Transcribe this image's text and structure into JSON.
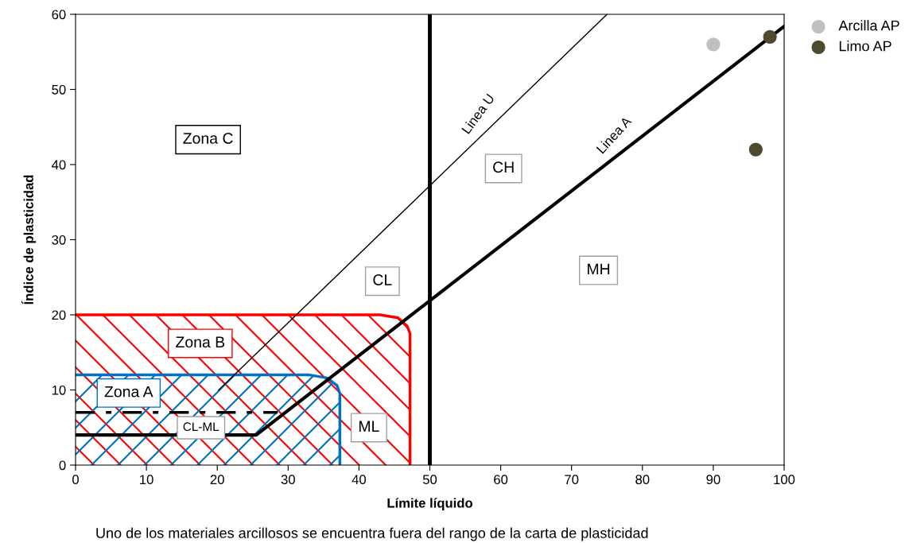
{
  "chart_data": {
    "type": "scatter",
    "xlabel": "Límite líquido",
    "ylabel": "Índice de plasticidad",
    "xlim": [
      0,
      100
    ],
    "ylim": [
      0,
      60
    ],
    "xticks": [
      0,
      10,
      20,
      30,
      40,
      50,
      60,
      70,
      80,
      90,
      100
    ],
    "yticks": [
      0,
      10,
      20,
      30,
      40,
      50,
      60
    ],
    "grid": false,
    "legend": "top right",
    "series": [
      {
        "type": "area",
        "color": "#ff0000",
        "marker": "none",
        "x": [
          0,
          43,
          45.5,
          46.8,
          47.2,
          47.2
        ],
        "values": [
          20,
          20,
          19.6,
          18.5,
          17.5,
          0
        ]
      },
      {
        "type": "area",
        "color": "#0070c0",
        "marker": "none",
        "x": [
          0,
          33,
          35.5,
          36.9,
          37.3,
          37.3
        ],
        "values": [
          12,
          12,
          11.6,
          10.6,
          9.5,
          0
        ]
      },
      {
        "type": "line",
        "name": "Linea U",
        "color": "#000000",
        "marker": "none",
        "x": [
          20.2,
          75
        ],
        "values": [
          10,
          60
        ]
      },
      {
        "type": "line",
        "name": "Linea A",
        "color": "#000000",
        "marker": "none",
        "x": [
          0,
          25.5,
          100
        ],
        "values": [
          4,
          4,
          58.4
        ]
      },
      {
        "type": "line",
        "color": "#000000",
        "marker": "none",
        "line_style": "dashed",
        "x": [
          0,
          28.5
        ],
        "values": [
          7,
          7
        ]
      },
      {
        "name": "Arcilla AP",
        "color": "#c0c0c0",
        "marker": "circle",
        "x": [
          90
        ],
        "values": [
          56
        ]
      },
      {
        "name": "Limo AP",
        "color": "#4d4a30",
        "marker": "circle",
        "x": [
          98,
          96
        ],
        "values": [
          57,
          42
        ]
      }
    ],
    "ref_lines": [
      {
        "axis": "x",
        "value": 50,
        "color": "#000000"
      }
    ],
    "annotations": [
      "Zona C",
      "CH",
      "CL",
      "MH",
      "Zona B",
      "Zona A",
      "CL-ML",
      "ML",
      "Uno de los materiales arcillosos se encuentra fuera del rango de la carta de plasticidad"
    ]
  }
}
